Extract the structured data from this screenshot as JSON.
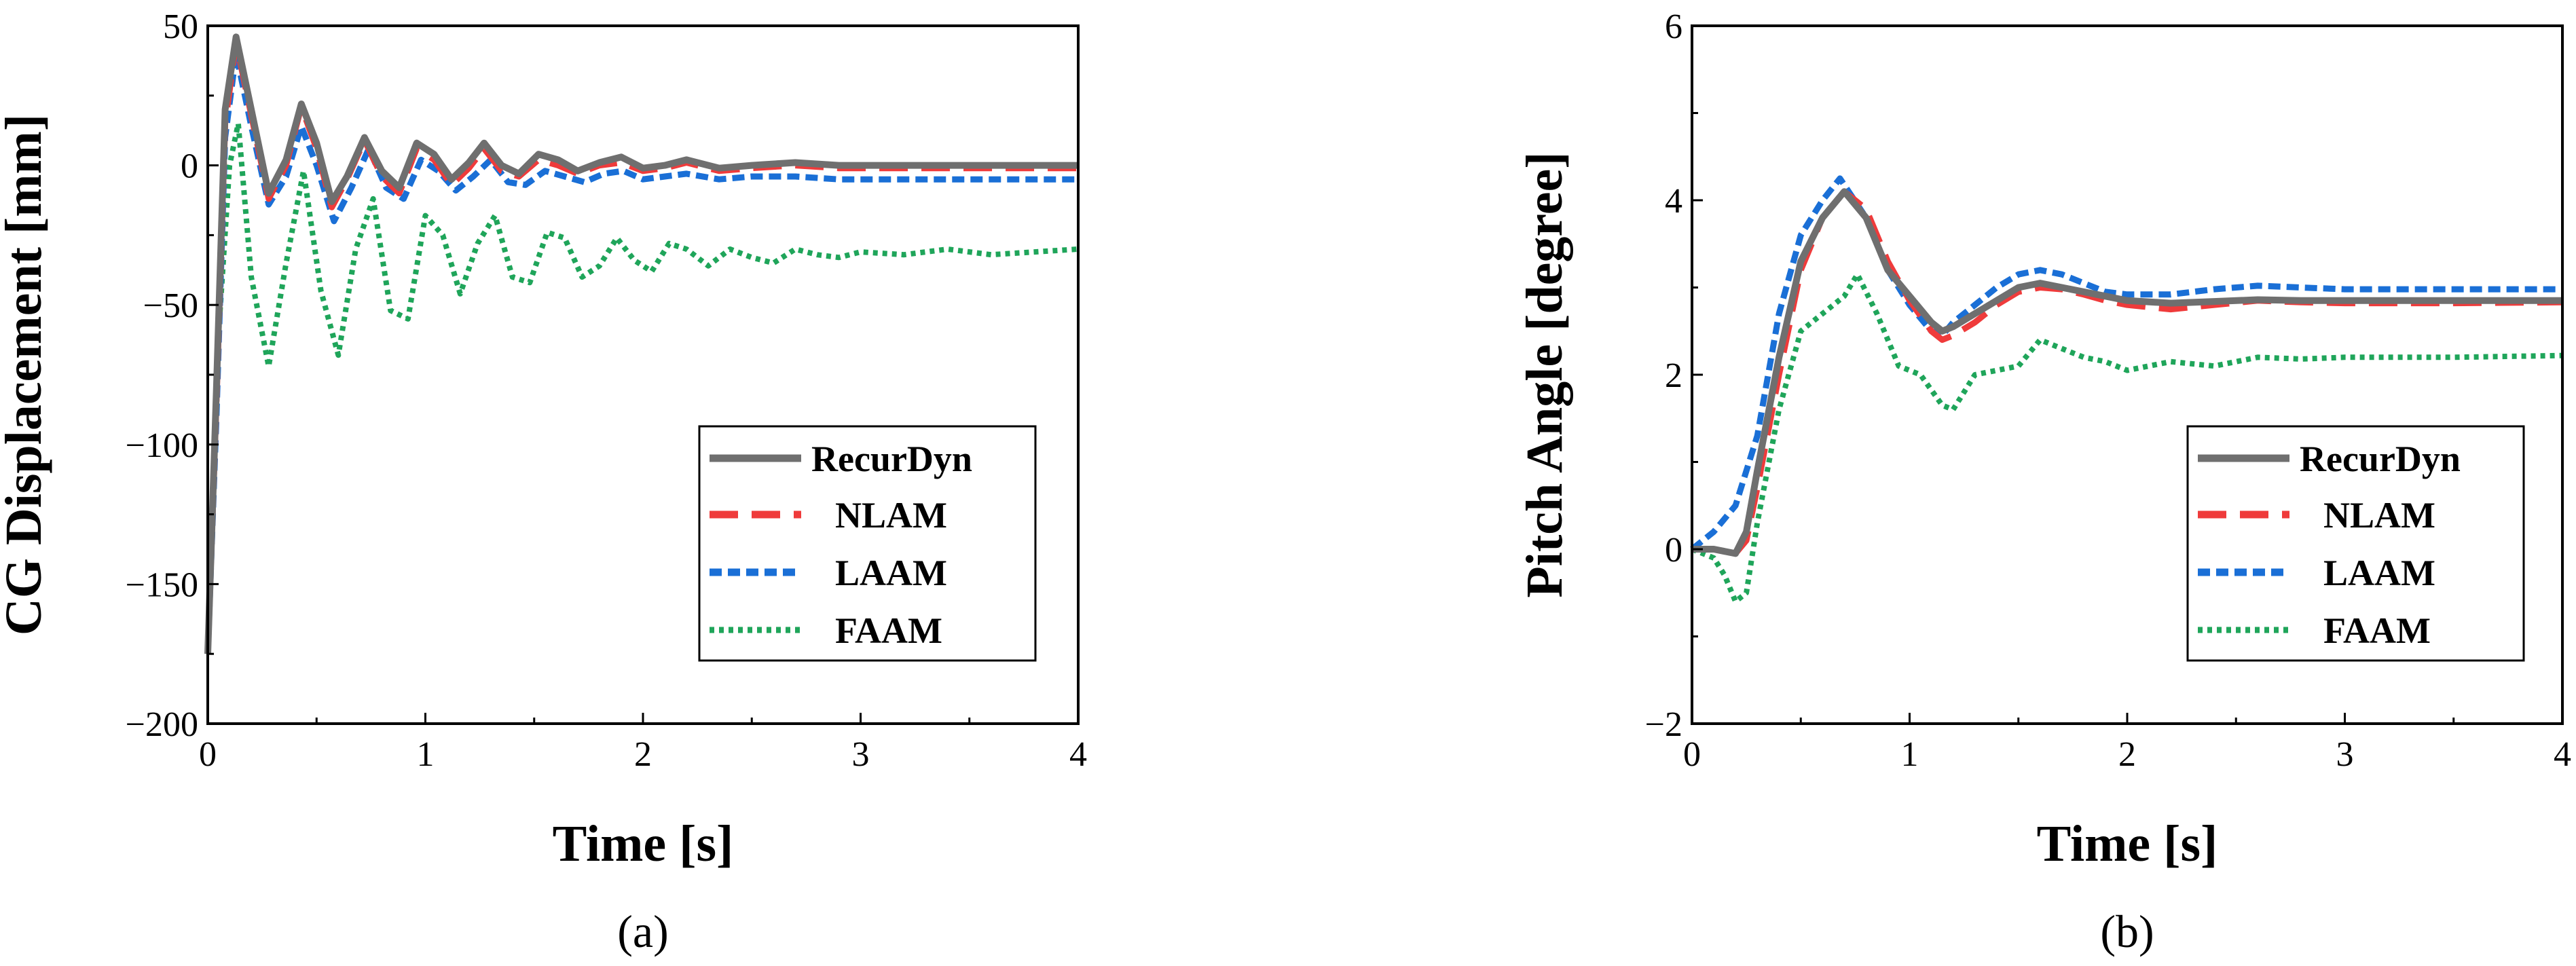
{
  "colors": {
    "RecurDyn": "#6f6f6f",
    "NLAM": "#ef3b3b",
    "LAAM": "#1a6fd6",
    "FAAM": "#1fa55a"
  },
  "chart_data": [
    {
      "id": "a",
      "type": "line",
      "caption": "(a)",
      "xlabel": "Time [s]",
      "ylabel": "CG Displacement [mm]",
      "xlim": [
        0,
        4
      ],
      "ylim": [
        -200,
        50
      ],
      "xticks": [
        0,
        1,
        2,
        3,
        4
      ],
      "yticks": [
        -200,
        -150,
        -100,
        -50,
        0,
        50
      ],
      "legend": [
        "RecurDyn",
        "NLAM",
        "LAAM",
        "FAAM"
      ],
      "legend_position": "bottom-right",
      "series": [
        {
          "name": "RecurDyn",
          "style": "solid",
          "x": [
            0,
            0.04,
            0.08,
            0.13,
            0.2,
            0.28,
            0.36,
            0.43,
            0.5,
            0.57,
            0.64,
            0.72,
            0.8,
            0.88,
            0.96,
            1.04,
            1.12,
            1.2,
            1.27,
            1.35,
            1.43,
            1.52,
            1.61,
            1.7,
            1.8,
            1.9,
            2.0,
            2.1,
            2.2,
            2.35,
            2.5,
            2.7,
            2.9,
            3.1,
            3.5,
            4.0
          ],
          "y": [
            -175,
            -80,
            20,
            46,
            20,
            -10,
            2,
            22,
            8,
            -13,
            -4,
            10,
            -2,
            -8,
            8,
            4,
            -5,
            1,
            8,
            0,
            -3,
            4,
            2,
            -2,
            1,
            3,
            -1,
            0,
            2,
            -1,
            0,
            1,
            0,
            0,
            0,
            0
          ]
        },
        {
          "name": "NLAM",
          "style": "dash",
          "x": [
            0,
            0.04,
            0.08,
            0.13,
            0.2,
            0.28,
            0.36,
            0.43,
            0.5,
            0.57,
            0.64,
            0.72,
            0.8,
            0.88,
            0.96,
            1.04,
            1.12,
            1.2,
            1.27,
            1.35,
            1.43,
            1.52,
            1.61,
            1.7,
            1.8,
            1.9,
            2.0,
            2.1,
            2.2,
            2.35,
            2.5,
            2.7,
            2.9,
            3.1,
            3.5,
            4.0
          ],
          "y": [
            -175,
            -85,
            15,
            44,
            18,
            -12,
            0,
            21,
            6,
            -15,
            -5,
            9,
            -4,
            -10,
            6,
            2,
            -7,
            -1,
            6,
            -2,
            -4,
            2,
            0,
            -3,
            0,
            1,
            -2,
            -1,
            1,
            -2,
            -1,
            0,
            -1,
            -1,
            -1,
            -1
          ]
        },
        {
          "name": "LAAM",
          "style": "dot",
          "x": [
            0,
            0.04,
            0.08,
            0.13,
            0.2,
            0.28,
            0.36,
            0.43,
            0.5,
            0.58,
            0.66,
            0.74,
            0.82,
            0.9,
            0.98,
            1.06,
            1.14,
            1.22,
            1.3,
            1.38,
            1.46,
            1.55,
            1.64,
            1.73,
            1.82,
            1.91,
            2.0,
            2.1,
            2.2,
            2.35,
            2.5,
            2.7,
            2.9,
            3.2,
            3.6,
            4.0
          ],
          "y": [
            -175,
            -90,
            10,
            40,
            14,
            -14,
            -4,
            14,
            0,
            -20,
            -8,
            6,
            -8,
            -12,
            2,
            -2,
            -9,
            -4,
            2,
            -6,
            -7,
            -2,
            -4,
            -6,
            -3,
            -2,
            -5,
            -4,
            -3,
            -5,
            -4,
            -4,
            -5,
            -5,
            -5,
            -5
          ]
        },
        {
          "name": "FAAM",
          "style": "fine-dot",
          "x": [
            0,
            0.05,
            0.1,
            0.14,
            0.2,
            0.28,
            0.36,
            0.44,
            0.52,
            0.6,
            0.68,
            0.76,
            0.84,
            0.92,
            1.0,
            1.08,
            1.16,
            1.24,
            1.32,
            1.4,
            1.48,
            1.56,
            1.64,
            1.72,
            1.8,
            1.88,
            1.96,
            2.04,
            2.12,
            2.2,
            2.3,
            2.4,
            2.5,
            2.6,
            2.7,
            2.8,
            2.9,
            3.0,
            3.2,
            3.4,
            3.6,
            3.8,
            4.0
          ],
          "y": [
            -175,
            -60,
            0,
            15,
            -40,
            -72,
            -35,
            -2,
            -45,
            -68,
            -30,
            -12,
            -52,
            -55,
            -18,
            -25,
            -46,
            -28,
            -18,
            -40,
            -42,
            -24,
            -26,
            -40,
            -36,
            -26,
            -34,
            -38,
            -28,
            -30,
            -36,
            -30,
            -33,
            -35,
            -30,
            -32,
            -33,
            -31,
            -32,
            -30,
            -32,
            -31,
            -30
          ]
        }
      ]
    },
    {
      "id": "b",
      "type": "line",
      "caption": "(b)",
      "xlabel": "Time [s]",
      "ylabel": "Pitch Angle [degree]",
      "xlim": [
        0,
        4
      ],
      "ylim": [
        -2,
        6
      ],
      "xticks": [
        0,
        1,
        2,
        3,
        4
      ],
      "yticks": [
        -2,
        0,
        2,
        4,
        6
      ],
      "legend": [
        "RecurDyn",
        "NLAM",
        "LAAM",
        "FAAM"
      ],
      "legend_position": "bottom-right",
      "series": [
        {
          "name": "RecurDyn",
          "style": "solid",
          "x": [
            0,
            0.1,
            0.2,
            0.25,
            0.3,
            0.4,
            0.5,
            0.6,
            0.7,
            0.8,
            0.9,
            1.0,
            1.1,
            1.15,
            1.2,
            1.3,
            1.4,
            1.5,
            1.6,
            1.7,
            1.8,
            1.9,
            2.0,
            2.2,
            2.4,
            2.6,
            2.8,
            3.0,
            3.5,
            4.0
          ],
          "y": [
            0,
            0,
            -0.05,
            0.2,
            0.9,
            2.2,
            3.3,
            3.8,
            4.1,
            3.8,
            3.2,
            2.9,
            2.6,
            2.5,
            2.55,
            2.7,
            2.85,
            3.0,
            3.05,
            3.0,
            2.95,
            2.9,
            2.85,
            2.82,
            2.84,
            2.86,
            2.85,
            2.85,
            2.85,
            2.85
          ]
        },
        {
          "name": "NLAM",
          "style": "dash",
          "x": [
            0,
            0.1,
            0.2,
            0.25,
            0.3,
            0.4,
            0.5,
            0.6,
            0.7,
            0.8,
            0.9,
            1.0,
            1.1,
            1.15,
            1.2,
            1.3,
            1.4,
            1.5,
            1.6,
            1.7,
            1.8,
            1.9,
            2.0,
            2.2,
            2.4,
            2.6,
            2.8,
            3.0,
            3.5,
            4.0
          ],
          "y": [
            0,
            0,
            -0.05,
            0.1,
            0.7,
            2.0,
            3.2,
            3.8,
            4.1,
            3.9,
            3.3,
            2.85,
            2.5,
            2.4,
            2.45,
            2.6,
            2.8,
            2.95,
            3.0,
            2.98,
            2.92,
            2.85,
            2.8,
            2.75,
            2.8,
            2.85,
            2.83,
            2.82,
            2.82,
            2.83
          ]
        },
        {
          "name": "LAAM",
          "style": "dot",
          "x": [
            0,
            0.1,
            0.2,
            0.3,
            0.4,
            0.5,
            0.6,
            0.68,
            0.8,
            0.9,
            1.0,
            1.1,
            1.15,
            1.2,
            1.3,
            1.4,
            1.5,
            1.6,
            1.7,
            1.8,
            1.9,
            2.0,
            2.2,
            2.4,
            2.6,
            2.8,
            3.0,
            3.5,
            4.0
          ],
          "y": [
            0,
            0.2,
            0.5,
            1.3,
            2.7,
            3.6,
            4.0,
            4.25,
            3.8,
            3.2,
            2.8,
            2.5,
            2.45,
            2.6,
            2.8,
            3.0,
            3.15,
            3.2,
            3.15,
            3.05,
            2.95,
            2.92,
            2.92,
            2.98,
            3.02,
            3.0,
            2.98,
            2.98,
            2.98
          ]
        },
        {
          "name": "FAAM",
          "style": "fine-dot",
          "x": [
            0,
            0.1,
            0.15,
            0.2,
            0.25,
            0.3,
            0.4,
            0.5,
            0.6,
            0.7,
            0.76,
            0.85,
            0.95,
            1.05,
            1.15,
            1.2,
            1.3,
            1.4,
            1.5,
            1.6,
            1.7,
            1.8,
            1.9,
            2.0,
            2.2,
            2.4,
            2.6,
            2.8,
            3.0,
            3.5,
            4.0
          ],
          "y": [
            0,
            -0.1,
            -0.3,
            -0.6,
            -0.5,
            0.3,
            1.6,
            2.5,
            2.7,
            2.9,
            3.15,
            2.7,
            2.1,
            2.0,
            1.65,
            1.6,
            2.0,
            2.05,
            2.1,
            2.4,
            2.3,
            2.2,
            2.15,
            2.05,
            2.15,
            2.1,
            2.2,
            2.18,
            2.2,
            2.2,
            2.22
          ]
        }
      ]
    }
  ]
}
